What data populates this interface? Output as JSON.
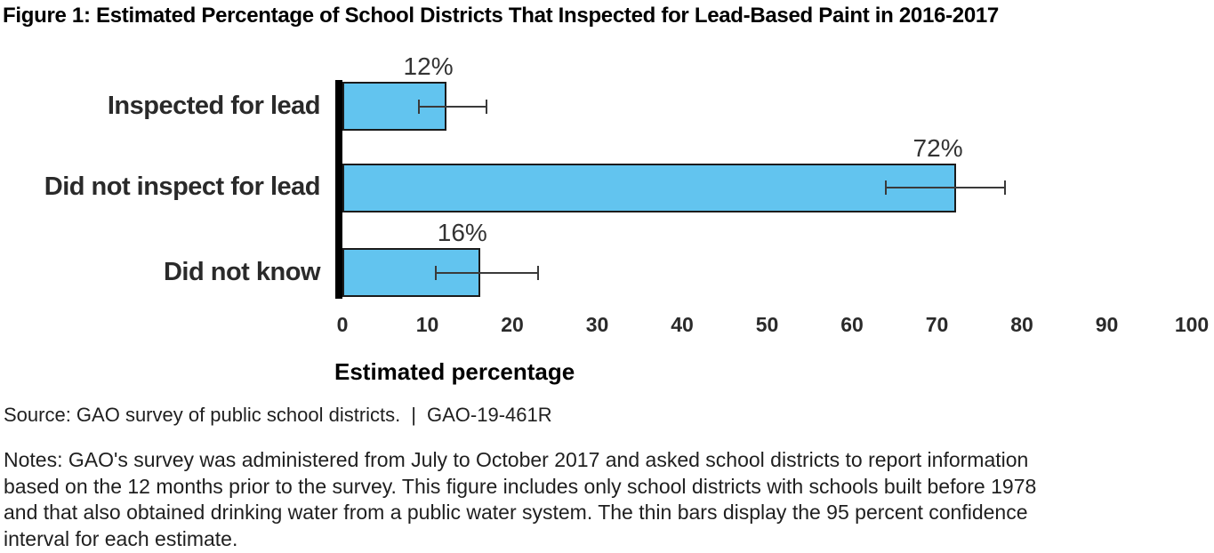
{
  "title": "Figure 1: Estimated Percentage of School Districts That Inspected for Lead-Based Paint in 2016-2017",
  "chart_data": {
    "type": "bar",
    "orientation": "horizontal",
    "categories": [
      "Inspected for lead",
      "Did not inspect for lead",
      "Did not know"
    ],
    "values": [
      12,
      72,
      16
    ],
    "value_labels": [
      "12%",
      "72%",
      "16%"
    ],
    "error_bars": [
      {
        "low": 9,
        "high": 17
      },
      {
        "low": 64,
        "high": 78
      },
      {
        "low": 11,
        "high": 23
      }
    ],
    "x_ticks": [
      0,
      10,
      20,
      30,
      40,
      50,
      60,
      70,
      80,
      90,
      100
    ],
    "xlim": [
      0,
      100
    ],
    "xlabel": "Estimated percentage",
    "grid": false,
    "legend": false,
    "bar_color": "#62C4EF",
    "bar_border_color": "#1b1b1b",
    "error_bar_color": "#3a3a3a",
    "axis_bar_color": "#000000",
    "note_on_error_bars": "95 percent confidence interval"
  },
  "source": {
    "text": "Source: GAO survey of public school districts.",
    "separator": "|",
    "report_id": "GAO-19-461R"
  },
  "notes": {
    "lines": [
      "Notes: GAO's survey was administered from July to October 2017 and asked school districts to report information",
      "based on the 12 months prior to the survey. This figure includes only school districts with schools built before 1978",
      "and that also obtained drinking water from a public water system. The thin bars display the 95 percent confidence",
      "interval for each estimate."
    ]
  }
}
